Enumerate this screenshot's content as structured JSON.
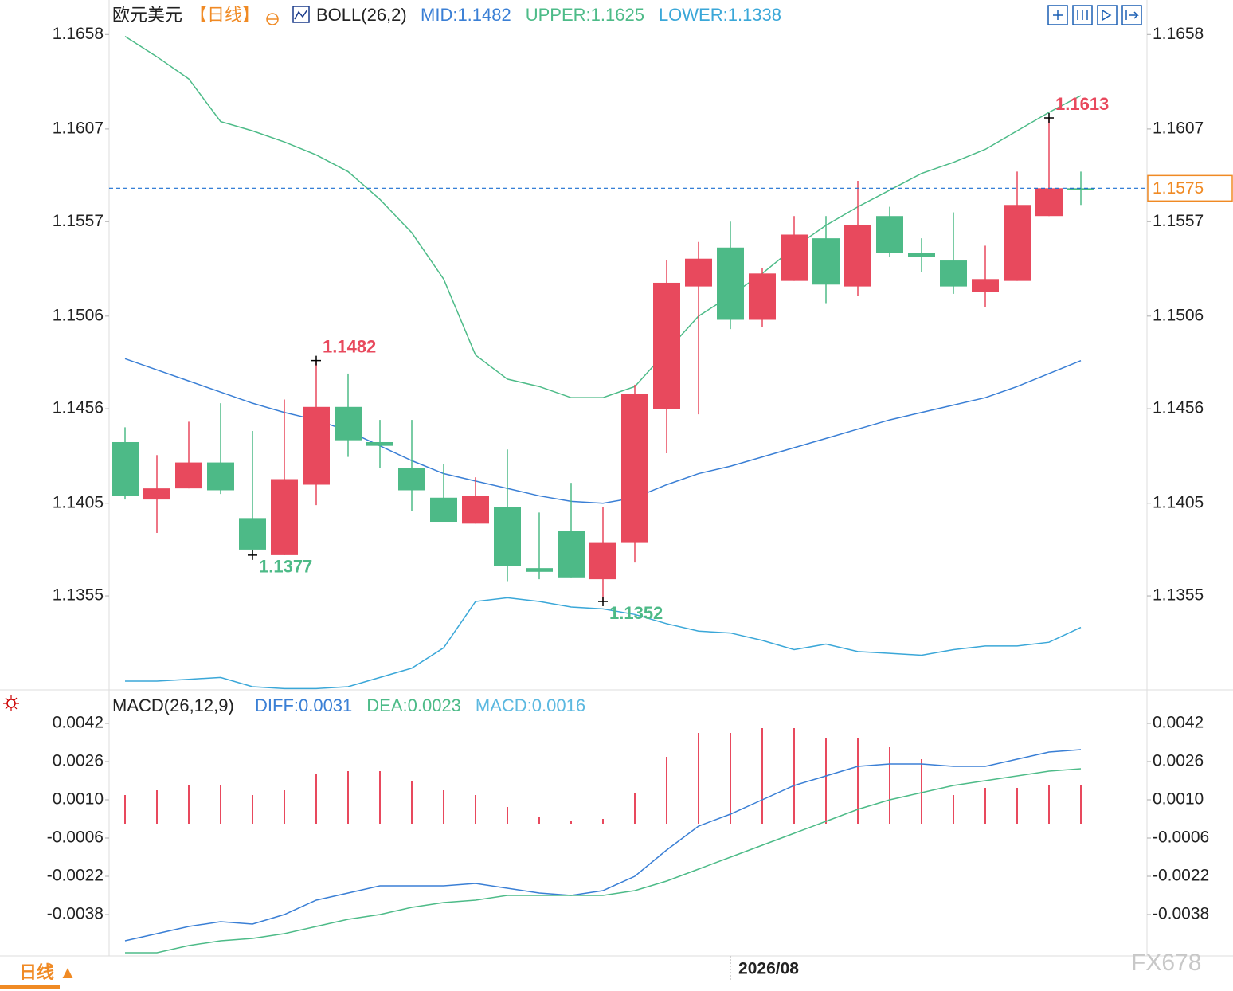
{
  "chart_data": [
    {
      "type": "candlestick",
      "symbol": "欧元美元",
      "period": "【日线】",
      "indicator": "BOLL(26,2)",
      "categories": [
        null,
        null,
        null,
        null,
        null,
        null,
        null,
        null,
        null,
        null,
        null,
        null,
        null,
        null,
        null,
        null,
        null,
        null,
        null,
        "2026/08",
        null,
        null,
        null,
        null,
        null,
        null,
        null,
        null,
        null,
        null,
        null
      ],
      "open": [
        1.1438,
        1.1407,
        1.1413,
        1.1427,
        1.1397,
        1.1377,
        1.1415,
        1.1457,
        1.1438,
        1.1424,
        1.1408,
        1.1394,
        1.1403,
        1.137,
        1.139,
        1.1364,
        1.1384,
        1.1456,
        1.1522,
        1.1543,
        1.1504,
        1.1525,
        1.1548,
        1.1522,
        1.156,
        1.154,
        1.1536,
        1.1519,
        1.1525,
        1.156,
        1.1575
      ],
      "high": [
        1.1446,
        1.1431,
        1.1449,
        1.1459,
        1.1444,
        1.1461,
        1.1482,
        1.1475,
        1.145,
        1.145,
        1.1426,
        1.1419,
        1.1434,
        1.14,
        1.1416,
        1.1403,
        1.1469,
        1.1536,
        1.1546,
        1.1557,
        1.1532,
        1.156,
        1.156,
        1.1579,
        1.1565,
        1.1548,
        1.1562,
        1.1544,
        1.1584,
        1.1613,
        1.1584
      ],
      "low": [
        1.1407,
        1.1389,
        1.1413,
        1.141,
        1.1377,
        1.1377,
        1.1404,
        1.143,
        1.1424,
        1.1401,
        1.1395,
        1.1394,
        1.1363,
        1.1364,
        1.1365,
        1.1352,
        1.1373,
        1.1432,
        1.1453,
        1.1499,
        1.15,
        1.1525,
        1.1513,
        1.1517,
        1.1538,
        1.153,
        1.1518,
        1.1511,
        1.1525,
        1.156,
        1.1566
      ],
      "close": [
        1.1409,
        1.1413,
        1.1427,
        1.1412,
        1.138,
        1.1418,
        1.1457,
        1.1439,
        1.1436,
        1.1412,
        1.1395,
        1.1409,
        1.1371,
        1.1368,
        1.1365,
        1.1384,
        1.1464,
        1.1524,
        1.1537,
        1.1504,
        1.1529,
        1.155,
        1.1523,
        1.1555,
        1.154,
        1.1538,
        1.1522,
        1.1526,
        1.1566,
        1.1575,
        1.1574
      ],
      "up_color": "#e8495d",
      "down_color": "#4dba87",
      "series": [
        {
          "name": "MID:1.1482",
          "color": "#3a7fd5",
          "values": [
            1.1483,
            1.1477,
            1.1471,
            1.1465,
            1.1459,
            1.1454,
            1.145,
            1.1444,
            1.1436,
            1.1428,
            1.1421,
            1.1417,
            1.1413,
            1.1409,
            1.1406,
            1.1405,
            1.1408,
            1.1415,
            1.1421,
            1.1425,
            1.143,
            1.1435,
            1.144,
            1.1445,
            1.145,
            1.1454,
            1.1458,
            1.1462,
            1.1468,
            1.1475,
            1.1482
          ]
        },
        {
          "name": "UPPER:1.1625",
          "color": "#4dbb88",
          "values": [
            1.1657,
            1.1646,
            1.1634,
            1.1611,
            1.1606,
            1.16,
            1.1593,
            1.1584,
            1.1569,
            1.1551,
            1.1526,
            1.1485,
            1.1472,
            1.1468,
            1.1462,
            1.1462,
            1.1468,
            1.1487,
            1.1506,
            1.1517,
            1.1529,
            1.1543,
            1.1555,
            1.1565,
            1.1574,
            1.1583,
            1.1589,
            1.1596,
            1.1606,
            1.1616,
            1.1625
          ]
        },
        {
          "name": "LOWER:1.1338",
          "color": "#3aa7d8",
          "values": [
            1.1309,
            1.1309,
            1.131,
            1.1311,
            1.1306,
            1.1305,
            1.1305,
            1.1306,
            1.1311,
            1.1316,
            1.1327,
            1.1352,
            1.1354,
            1.1352,
            1.1349,
            1.1348,
            1.1345,
            1.134,
            1.1336,
            1.1335,
            1.1331,
            1.1326,
            1.1329,
            1.1325,
            1.1324,
            1.1323,
            1.1326,
            1.1328,
            1.1328,
            1.133,
            1.1338
          ]
        }
      ],
      "last_price": 1.1575,
      "annotations": [
        {
          "value": 1.1482
        },
        {
          "value": 1.1377
        },
        {
          "value": 1.1352
        },
        {
          "value": 1.1613
        }
      ],
      "ylim": [
        1.1303,
        1.1665
      ],
      "yticks": [
        1.1658,
        1.1607,
        1.1557,
        1.1506,
        1.1456,
        1.1405,
        1.1355
      ]
    },
    {
      "type": "macd",
      "indicator": "MACD(26,12,9)",
      "series": [
        {
          "name": "DIFF:0.0031",
          "color": "#3a7fd5",
          "values": [
            -0.0049,
            -0.0046,
            -0.0043,
            -0.0041,
            -0.0042,
            -0.0038,
            -0.0032,
            -0.0029,
            -0.0026,
            -0.0026,
            -0.0026,
            -0.0025,
            -0.0027,
            -0.0029,
            -0.003,
            -0.0028,
            -0.0022,
            -0.0011,
            -0.0001,
            0.0004,
            0.001,
            0.0016,
            0.002,
            0.0024,
            0.0025,
            0.0025,
            0.0024,
            0.0024,
            0.0027,
            0.003,
            0.0031
          ]
        },
        {
          "name": "DEA:0.0023",
          "color": "#4dbb88",
          "values": [
            -0.0054,
            -0.0054,
            -0.0051,
            -0.0049,
            -0.0048,
            -0.0046,
            -0.0043,
            -0.004,
            -0.0038,
            -0.0035,
            -0.0033,
            -0.0032,
            -0.003,
            -0.003,
            -0.003,
            -0.003,
            -0.0028,
            -0.0024,
            -0.0019,
            -0.0014,
            -0.0009,
            -0.0004,
            0.0001,
            0.0006,
            0.001,
            0.0013,
            0.0016,
            0.0018,
            0.002,
            0.0022,
            0.0023
          ]
        },
        {
          "name": "MACD:0.0016",
          "color": "#e8495d",
          "legend_color": "#5bb8e0",
          "values": [
            0.0012,
            0.0014,
            0.0016,
            0.0016,
            0.0012,
            0.0014,
            0.0021,
            0.0022,
            0.0022,
            0.0018,
            0.0014,
            0.0012,
            0.0007,
            0.0003,
            0.0001,
            0.0002,
            0.0013,
            0.0028,
            0.0038,
            0.0038,
            0.004,
            0.004,
            0.0036,
            0.0036,
            0.0032,
            0.0027,
            0.0012,
            0.0015,
            0.0015,
            0.0016,
            0.0016
          ]
        }
      ],
      "ylim": [
        -0.0055,
        0.0053
      ],
      "yticks": [
        0.0042,
        0.0026,
        {
          "value": 0.001,
          "label": "0.0010"
        },
        -0.0006,
        -0.0022,
        -0.0038
      ]
    }
  ],
  "footer": {
    "period_button": "日线 ▲",
    "watermark": "FX678"
  }
}
